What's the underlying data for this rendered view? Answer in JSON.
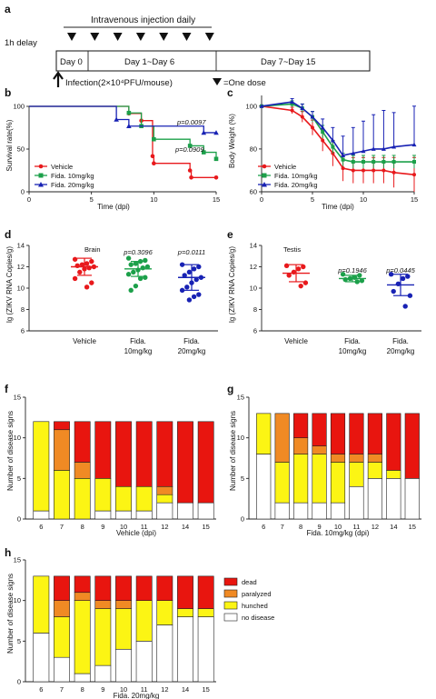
{
  "colors": {
    "vehicle": "#e8191c",
    "fida10": "#1ca04a",
    "fida20": "#1822b4",
    "dead": "#e8150f",
    "paralyzed": "#f08a24",
    "hunched": "#fcf514",
    "no_disease": "#ffffff"
  },
  "panel_a": {
    "label": "a",
    "title": "Intravenous injection daily",
    "delay": "1h delay",
    "segments": [
      "Day 0",
      "Day 1~Day 6",
      "Day 7~Day 15"
    ],
    "infection": "Infection(2×10⁴PFU/mouse)",
    "dose_legend": "=One dose",
    "dose_count": 7
  },
  "panel_b": {
    "label": "b",
    "chart_data": {
      "type": "line",
      "ylabel": "Survival rate(%)",
      "xlabel": "Time (dpi)",
      "xlim": [
        0,
        15
      ],
      "ylim": [
        0,
        100
      ],
      "xticks": [
        0,
        5,
        10,
        15
      ],
      "yticks": [
        0,
        50,
        100
      ],
      "legend": [
        "Vehicle",
        "Fida. 10mg/kg",
        "Fida. 20mg/kg"
      ],
      "pvalues": [
        "p=0.0097",
        "p=0.0909"
      ],
      "series": [
        {
          "name": "Vehicle",
          "x": [
            0,
            7,
            7.9,
            8,
            9,
            9.9,
            10,
            11,
            12,
            12.9,
            13,
            14,
            15
          ],
          "y": [
            100,
            100,
            100,
            91.7,
            83.3,
            41.7,
            33.3,
            33.3,
            33.3,
            25,
            16.7,
            16.7,
            16.7
          ]
        },
        {
          "name": "Fida. 10mg/kg",
          "x": [
            0,
            7.9,
            8,
            9,
            10,
            11,
            12,
            12.9,
            13,
            14,
            15
          ],
          "y": [
            100,
            100,
            92.3,
            76.9,
            61.5,
            61.5,
            61.5,
            53.8,
            53.8,
            46.2,
            38.5
          ]
        },
        {
          "name": "Fida. 20mg/kg",
          "x": [
            0,
            6.9,
            7,
            7.9,
            8,
            9,
            10,
            11,
            12,
            13,
            14,
            15
          ],
          "y": [
            100,
            100,
            84.6,
            84.6,
            76.9,
            76.9,
            76.9,
            76.9,
            76.9,
            76.9,
            69.2,
            69.2
          ]
        }
      ]
    }
  },
  "panel_c": {
    "label": "c",
    "chart_data": {
      "type": "line",
      "ylabel": "Body Weight (%)",
      "xlabel": "Time (dpi)",
      "xlim": [
        0,
        15
      ],
      "ylim": [
        60,
        105
      ],
      "xticks": [
        0,
        5,
        10,
        15
      ],
      "yticks": [
        60,
        80,
        100
      ],
      "legend": [
        "Vehicle",
        "Fida. 10mg/kg",
        "Fida. 20mg/kg"
      ],
      "x": [
        0,
        3,
        4,
        5,
        6,
        7,
        8,
        9,
        10,
        11,
        12,
        13,
        15
      ],
      "series": [
        {
          "name": "Vehicle",
          "y": [
            100,
            98,
            95,
            90,
            84,
            78,
            71,
            70,
            70,
            70,
            70,
            69,
            68
          ],
          "err": [
            0,
            1.5,
            2.5,
            3.5,
            5,
            6,
            6,
            6,
            6,
            6,
            6,
            7,
            8
          ]
        },
        {
          "name": "Fida. 10mg/kg",
          "y": [
            100,
            101,
            99,
            95,
            88,
            81,
            75,
            74,
            74,
            74,
            74,
            74,
            74
          ],
          "err": [
            0,
            1.5,
            2,
            2.5,
            3,
            3,
            3,
            3,
            3,
            3,
            3,
            3,
            3
          ]
        },
        {
          "name": "Fida. 20mg/kg",
          "y": [
            100,
            102,
            99,
            95,
            90,
            84,
            77,
            78,
            79,
            80,
            80,
            81,
            82
          ],
          "err": [
            0,
            1.5,
            2,
            2.5,
            4,
            6,
            9,
            12,
            14,
            16,
            18,
            16,
            18
          ]
        }
      ]
    }
  },
  "panel_d": {
    "label": "d",
    "tissue": "Brain",
    "chart_data": {
      "type": "scatter",
      "ylabel": "lg (ZIKV RNA Copies/g)",
      "ylim": [
        6,
        14
      ],
      "yticks": [
        6,
        8,
        10,
        12,
        14
      ],
      "categories": [
        "Vehicle",
        "Fida.\n10mg/kg",
        "Fida.\n20mg/kg"
      ],
      "pvalues": [
        "",
        "p=0.3096",
        "p=0.0111"
      ],
      "series": [
        {
          "name": "Vehicle",
          "values": [
            12.7,
            12.5,
            12.3,
            12.2,
            12.1,
            12.0,
            11.9,
            11.8,
            11.5,
            10.9,
            10.5,
            10.1
          ],
          "mean": 12.0,
          "sd": 0.8
        },
        {
          "name": "Fida. 10mg/kg",
          "values": [
            12.8,
            12.6,
            12.5,
            12.3,
            12.2,
            12.0,
            11.9,
            11.7,
            11.5,
            11.3,
            11.0,
            10.9,
            10.2,
            9.8
          ],
          "mean": 11.8,
          "sd": 0.7
        },
        {
          "name": "Fida. 20mg/kg",
          "values": [
            12.2,
            12.0,
            11.8,
            11.5,
            11.2,
            11.0,
            10.8,
            10.5,
            10.1,
            9.8,
            9.4,
            9.2,
            8.9
          ],
          "mean": 11.0,
          "sd": 1.2
        }
      ]
    }
  },
  "panel_e": {
    "label": "e",
    "tissue": "Testis",
    "chart_data": {
      "type": "scatter",
      "ylabel": "lg (ZIKV RNA Copies/g)",
      "ylim": [
        6,
        14
      ],
      "yticks": [
        6,
        8,
        10,
        12,
        14
      ],
      "categories": [
        "Vehicle",
        "Fida.\n10mg/kg",
        "Fida.\n20mg/kg"
      ],
      "pvalues": [
        "",
        "p=0.1946",
        "p=0.0445"
      ],
      "series": [
        {
          "name": "Vehicle",
          "values": [
            12.1,
            12.0,
            11.8,
            11.5,
            11.2,
            10.5,
            10.2
          ],
          "mean": 11.4,
          "sd": 0.8
        },
        {
          "name": "Fida. 10mg/kg",
          "values": [
            11.3,
            11.2,
            11.0,
            10.9,
            10.8,
            10.7,
            10.6
          ],
          "mean": 10.9,
          "sd": 0.3
        },
        {
          "name": "Fida. 20mg/kg",
          "values": [
            11.3,
            11.1,
            10.9,
            10.4,
            9.7,
            9.3,
            8.3
          ],
          "mean": 10.3,
          "sd": 1.0
        }
      ]
    }
  },
  "ylabel_signs": "Number of disease signs",
  "panel_f": {
    "label": "f",
    "chart_data": {
      "type": "bar",
      "xlabel": "Vehicle (dpi)",
      "ylim": [
        0,
        15
      ],
      "yticks": [
        0,
        5,
        10,
        15
      ],
      "categories": [
        "6",
        "7",
        "8",
        "9",
        "10",
        "11",
        "12",
        "14",
        "15"
      ],
      "stack_order": [
        "no disease",
        "hunched",
        "paralyzed",
        "dead"
      ],
      "series": [
        {
          "name": "no disease",
          "values": [
            1,
            0,
            0,
            1,
            1,
            1,
            2,
            2,
            2
          ]
        },
        {
          "name": "hunched",
          "values": [
            11,
            6,
            5,
            4,
            3,
            3,
            1,
            0,
            0
          ]
        },
        {
          "name": "paralyzed",
          "values": [
            0,
            5,
            2,
            0,
            0,
            0,
            1,
            0,
            0
          ]
        },
        {
          "name": "dead",
          "values": [
            0,
            1,
            5,
            7,
            8,
            8,
            8,
            10,
            10
          ]
        }
      ]
    }
  },
  "panel_g": {
    "label": "g",
    "chart_data": {
      "type": "bar",
      "xlabel": "Fida. 10mg/kg (dpi)",
      "ylim": [
        0,
        15
      ],
      "yticks": [
        0,
        5,
        10,
        15
      ],
      "categories": [
        "6",
        "7",
        "8",
        "9",
        "10",
        "11",
        "12",
        "14",
        "15"
      ],
      "stack_order": [
        "no disease",
        "hunched",
        "paralyzed",
        "dead"
      ],
      "series": [
        {
          "name": "no disease",
          "values": [
            8,
            2,
            2,
            2,
            2,
            4,
            5,
            5,
            5
          ]
        },
        {
          "name": "hunched",
          "values": [
            5,
            5,
            6,
            6,
            5,
            3,
            2,
            1,
            0
          ]
        },
        {
          "name": "paralyzed",
          "values": [
            0,
            6,
            2,
            1,
            1,
            1,
            1,
            0,
            0
          ]
        },
        {
          "name": "dead",
          "values": [
            0,
            0,
            3,
            4,
            5,
            5,
            5,
            7,
            8
          ]
        }
      ]
    }
  },
  "panel_h": {
    "label": "h",
    "chart_data": {
      "type": "bar",
      "xlabel": "Fida. 20mg/kg",
      "ylim": [
        0,
        15
      ],
      "yticks": [
        0,
        5,
        10,
        15
      ],
      "categories": [
        "6",
        "7",
        "8",
        "9",
        "10",
        "11",
        "12",
        "14",
        "15"
      ],
      "stack_order": [
        "no disease",
        "hunched",
        "paralyzed",
        "dead"
      ],
      "legend": [
        "dead",
        "paralyzed",
        "hunched",
        "no disease"
      ],
      "series": [
        {
          "name": "no disease",
          "values": [
            6,
            3,
            1,
            2,
            4,
            5,
            7,
            8,
            8
          ]
        },
        {
          "name": "hunched",
          "values": [
            7,
            5,
            9,
            7,
            5,
            5,
            3,
            1,
            1
          ]
        },
        {
          "name": "paralyzed",
          "values": [
            0,
            2,
            1,
            1,
            1,
            0,
            0,
            0,
            0
          ]
        },
        {
          "name": "dead",
          "values": [
            0,
            3,
            2,
            3,
            3,
            3,
            3,
            4,
            4
          ]
        }
      ]
    }
  }
}
